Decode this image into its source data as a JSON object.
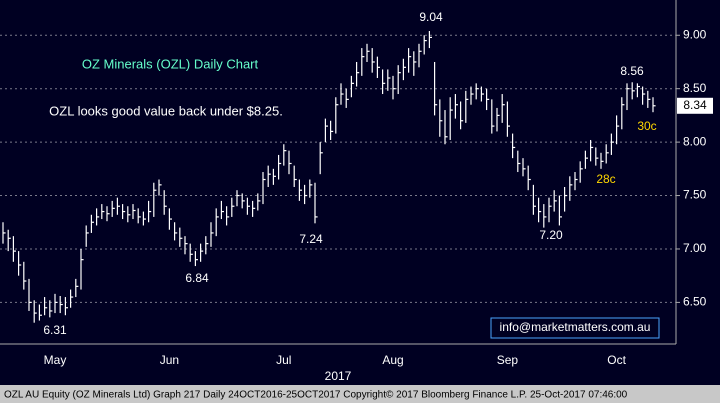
{
  "chart_data": {
    "type": "hlc",
    "title": "OZ Minerals (OZL) Daily Chart",
    "subtitle": "OZL looks good value back under $8.25.",
    "x_label": "2017",
    "footer": "OZL AU Equity (OZ Minerals Ltd) Graph 217  Daily 24OCT2016-25OCT2017  Copyright© 2017 Bloomberg Finance L.P.  25-Oct-2017 07:46:00",
    "contact": "info@marketmatters.com.au",
    "color": "#ffffff",
    "last": {
      "value": 8.34,
      "label": "8.34"
    },
    "annotations": [
      "6.31",
      "6.84",
      "7.24",
      "9.04",
      "7.20",
      "8.56",
      "28c",
      "30c"
    ],
    "ylim": [
      6.12,
      9.33
    ],
    "yticks": [
      {
        "value": 6.5,
        "label": "6.50"
      },
      {
        "value": 7,
        "label": "7.00"
      },
      {
        "value": 7.5,
        "label": "7.50"
      },
      {
        "value": 8,
        "label": "8.00"
      },
      {
        "value": 8.5,
        "label": "8.50"
      },
      {
        "value": 9,
        "label": "9.00"
      }
    ],
    "grid": true,
    "categories": [
      null,
      null,
      null,
      null,
      null,
      null,
      null,
      null,
      null,
      null,
      "May",
      null,
      null,
      null,
      null,
      null,
      null,
      null,
      null,
      null,
      null,
      null,
      null,
      null,
      null,
      null,
      null,
      null,
      null,
      null,
      null,
      null,
      "Jun",
      null,
      null,
      null,
      null,
      null,
      null,
      null,
      null,
      null,
      null,
      null,
      null,
      null,
      null,
      null,
      null,
      null,
      null,
      null,
      null,
      null,
      "Jul",
      null,
      null,
      null,
      null,
      null,
      null,
      null,
      null,
      null,
      null,
      null,
      null,
      null,
      null,
      null,
      null,
      null,
      null,
      null,
      null,
      "Aug",
      null,
      null,
      null,
      null,
      null,
      null,
      null,
      null,
      null,
      null,
      null,
      null,
      null,
      null,
      null,
      null,
      null,
      null,
      null,
      null,
      null,
      "Sep",
      null,
      null,
      null,
      null,
      null,
      null,
      null,
      null,
      null,
      null,
      null,
      null,
      null,
      null,
      null,
      null,
      null,
      null,
      null,
      null,
      "Oct",
      null,
      null,
      null,
      null,
      null,
      null,
      null
    ],
    "high": [
      7.25,
      7.18,
      7.12,
      6.98,
      6.88,
      6.72,
      6.52,
      6.48,
      6.55,
      6.52,
      6.58,
      6.56,
      6.55,
      6.62,
      6.72,
      7.0,
      7.22,
      7.32,
      7.38,
      7.42,
      7.4,
      7.45,
      7.48,
      7.42,
      7.4,
      7.42,
      7.38,
      7.35,
      7.45,
      7.62,
      7.65,
      7.55,
      7.38,
      7.25,
      7.2,
      7.12,
      7.05,
      6.98,
      7.05,
      7.12,
      7.25,
      7.38,
      7.45,
      7.4,
      7.48,
      7.55,
      7.52,
      7.48,
      7.45,
      7.52,
      7.72,
      7.78,
      7.75,
      7.88,
      7.98,
      7.92,
      7.78,
      7.65,
      7.6,
      7.65,
      7.62,
      8.0,
      8.22,
      8.2,
      8.42,
      8.55,
      8.5,
      8.62,
      8.75,
      8.88,
      8.92,
      8.88,
      8.8,
      8.68,
      8.68,
      8.62,
      8.72,
      8.78,
      8.88,
      8.85,
      8.92,
      9.0,
      9.04,
      8.75,
      8.4,
      8.3,
      8.42,
      8.45,
      8.38,
      8.48,
      8.52,
      8.55,
      8.52,
      8.5,
      8.4,
      8.32,
      8.45,
      8.38,
      8.08,
      7.92,
      7.85,
      7.78,
      7.6,
      7.48,
      7.42,
      7.48,
      7.55,
      7.5,
      7.58,
      7.68,
      7.72,
      7.82,
      7.92,
      8.02,
      7.95,
      7.9,
      7.98,
      8.08,
      8.25,
      8.42,
      8.55,
      8.56,
      8.55,
      8.52,
      8.48,
      8.42
    ],
    "low": [
      7.05,
      6.98,
      6.88,
      6.75,
      6.62,
      6.42,
      6.31,
      6.33,
      6.38,
      6.36,
      6.4,
      6.4,
      6.38,
      6.45,
      6.55,
      6.62,
      7.02,
      7.15,
      7.22,
      7.28,
      7.26,
      7.3,
      7.32,
      7.28,
      7.25,
      7.28,
      7.24,
      7.22,
      7.25,
      7.3,
      7.5,
      7.32,
      7.18,
      7.08,
      7.02,
      6.95,
      6.88,
      6.84,
      6.88,
      6.95,
      7.02,
      7.12,
      7.28,
      7.22,
      7.3,
      7.4,
      7.38,
      7.32,
      7.3,
      7.36,
      7.42,
      7.58,
      7.6,
      7.65,
      7.78,
      7.7,
      7.58,
      7.45,
      7.42,
      7.48,
      7.24,
      7.7,
      8.0,
      8.02,
      8.08,
      8.35,
      8.32,
      8.42,
      8.52,
      8.62,
      8.75,
      8.65,
      8.6,
      8.45,
      8.48,
      8.4,
      8.45,
      8.58,
      8.65,
      8.62,
      8.7,
      8.82,
      8.88,
      8.25,
      8.05,
      7.98,
      8.02,
      8.22,
      8.12,
      8.18,
      8.35,
      8.4,
      8.38,
      8.3,
      8.08,
      8.1,
      8.18,
      8.05,
      7.85,
      7.72,
      7.68,
      7.55,
      7.32,
      7.25,
      7.2,
      7.25,
      7.35,
      7.22,
      7.35,
      7.45,
      7.55,
      7.62,
      7.75,
      7.82,
      7.78,
      7.75,
      7.8,
      7.88,
      7.98,
      8.12,
      8.3,
      8.4,
      8.42,
      8.35,
      8.32,
      8.28
    ],
    "close": [
      7.15,
      7.1,
      6.98,
      6.85,
      6.7,
      6.5,
      6.4,
      6.38,
      6.45,
      6.42,
      6.5,
      6.48,
      6.45,
      6.55,
      6.65,
      6.9,
      7.15,
      7.25,
      7.3,
      7.35,
      7.33,
      7.38,
      7.4,
      7.35,
      7.32,
      7.36,
      7.3,
      7.28,
      7.35,
      7.55,
      7.6,
      7.4,
      7.28,
      7.15,
      7.1,
      7.05,
      6.95,
      6.9,
      6.98,
      7.05,
      7.15,
      7.3,
      7.35,
      7.3,
      7.4,
      7.5,
      7.45,
      7.4,
      7.38,
      7.45,
      7.65,
      7.7,
      7.68,
      7.8,
      7.92,
      7.8,
      7.65,
      7.55,
      7.5,
      7.6,
      7.3,
      7.9,
      8.15,
      8.1,
      8.35,
      8.45,
      8.4,
      8.55,
      8.65,
      8.8,
      8.85,
      8.75,
      8.7,
      8.55,
      8.6,
      8.5,
      8.65,
      8.7,
      8.8,
      8.75,
      8.85,
      8.95,
      8.98,
      8.35,
      8.2,
      8.05,
      8.3,
      8.35,
      8.2,
      8.4,
      8.45,
      8.5,
      8.45,
      8.4,
      8.15,
      8.25,
      8.35,
      8.15,
      7.95,
      7.8,
      7.75,
      7.65,
      7.4,
      7.35,
      7.3,
      7.4,
      7.45,
      7.3,
      7.5,
      7.6,
      7.65,
      7.75,
      7.85,
      7.95,
      7.85,
      7.82,
      7.9,
      8.0,
      8.15,
      8.35,
      8.5,
      8.48,
      8.52,
      8.45,
      8.4,
      8.34
    ]
  }
}
